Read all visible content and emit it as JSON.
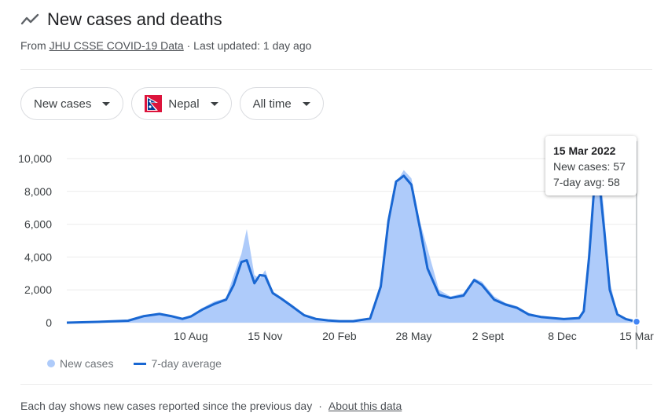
{
  "header": {
    "title": "New cases and deaths",
    "source_prefix": "From",
    "source_link": "JHU CSSE COVID-19 Data",
    "updated": "· Last updated: 1 day ago"
  },
  "filters": {
    "metric": "New cases",
    "country": "Nepal",
    "range": "All time"
  },
  "tooltip": {
    "date": "15 Mar 2022",
    "cases_line": "New cases: 57",
    "avg_line": "7-day avg: 58"
  },
  "legend": {
    "cases": "New cases",
    "avg": "7-day average"
  },
  "footer": {
    "note": "Each day shows new cases reported since the previous day",
    "sep": "·",
    "link": "About this data"
  },
  "colors": {
    "bars": "#aecbfa",
    "line": "#1967d2",
    "grid": "#ebebeb"
  },
  "chart_data": {
    "type": "area",
    "y_ticks": [
      "0",
      "2,000",
      "4,000",
      "6,000",
      "8,000",
      "10,000"
    ],
    "y_tick_values": [
      0,
      2000,
      4000,
      6000,
      8000,
      10000
    ],
    "ylim": [
      0,
      10000
    ],
    "x_ticks": [
      {
        "label": "10 Aug",
        "date": "2020-08-10"
      },
      {
        "label": "15 Nov",
        "date": "2020-11-15"
      },
      {
        "label": "20 Feb",
        "date": "2021-02-20"
      },
      {
        "label": "28 May",
        "date": "2021-05-28"
      },
      {
        "label": "2 Sept",
        "date": "2021-09-02"
      },
      {
        "label": "8 Dec",
        "date": "2021-12-08"
      },
      {
        "label": "15 Mar",
        "date": "2022-03-15"
      }
    ],
    "x_range": [
      "2020-03-01",
      "2022-03-15"
    ],
    "series": [
      {
        "name": "New cases",
        "kind": "bars",
        "points": [
          [
            "2020-03-01",
            0
          ],
          [
            "2020-04-10",
            60
          ],
          [
            "2020-05-20",
            150
          ],
          [
            "2020-06-10",
            450
          ],
          [
            "2020-06-30",
            600
          ],
          [
            "2020-07-15",
            420
          ],
          [
            "2020-07-30",
            250
          ],
          [
            "2020-08-10",
            450
          ],
          [
            "2020-08-25",
            900
          ],
          [
            "2020-09-10",
            1300
          ],
          [
            "2020-09-25",
            1500
          ],
          [
            "2020-10-05",
            2900
          ],
          [
            "2020-10-15",
            4200
          ],
          [
            "2020-10-22",
            5700
          ],
          [
            "2020-11-01",
            2900
          ],
          [
            "2020-11-08",
            2700
          ],
          [
            "2020-11-15",
            3200
          ],
          [
            "2020-11-25",
            1900
          ],
          [
            "2020-12-05",
            1600
          ],
          [
            "2020-12-20",
            1100
          ],
          [
            "2021-01-05",
            500
          ],
          [
            "2021-01-20",
            250
          ],
          [
            "2021-02-05",
            150
          ],
          [
            "2021-02-20",
            100
          ],
          [
            "2021-03-10",
            100
          ],
          [
            "2021-04-01",
            300
          ],
          [
            "2021-04-15",
            2500
          ],
          [
            "2021-04-25",
            6500
          ],
          [
            "2021-05-05",
            8500
          ],
          [
            "2021-05-15",
            9300
          ],
          [
            "2021-05-25",
            8800
          ],
          [
            "2021-06-05",
            6200
          ],
          [
            "2021-06-15",
            4500
          ],
          [
            "2021-06-30",
            2000
          ],
          [
            "2021-07-15",
            1600
          ],
          [
            "2021-08-01",
            1800
          ],
          [
            "2021-08-15",
            2700
          ],
          [
            "2021-08-25",
            2500
          ],
          [
            "2021-09-10",
            1600
          ],
          [
            "2021-09-25",
            1200
          ],
          [
            "2021-10-10",
            1000
          ],
          [
            "2021-10-25",
            600
          ],
          [
            "2021-11-10",
            400
          ],
          [
            "2021-11-25",
            300
          ],
          [
            "2021-12-10",
            250
          ],
          [
            "2021-12-30",
            300
          ],
          [
            "2022-01-05",
            800
          ],
          [
            "2022-01-12",
            4200
          ],
          [
            "2022-01-18",
            8000
          ],
          [
            "2022-01-25",
            10200
          ],
          [
            "2022-02-01",
            6500
          ],
          [
            "2022-02-08",
            2500
          ],
          [
            "2022-02-18",
            600
          ],
          [
            "2022-03-01",
            250
          ],
          [
            "2022-03-15",
            57
          ]
        ]
      },
      {
        "name": "7-day average",
        "kind": "line",
        "points": [
          [
            "2020-03-01",
            0
          ],
          [
            "2020-04-10",
            50
          ],
          [
            "2020-05-20",
            120
          ],
          [
            "2020-06-10",
            400
          ],
          [
            "2020-06-30",
            530
          ],
          [
            "2020-07-15",
            400
          ],
          [
            "2020-07-30",
            230
          ],
          [
            "2020-08-10",
            380
          ],
          [
            "2020-08-25",
            800
          ],
          [
            "2020-09-10",
            1150
          ],
          [
            "2020-09-25",
            1400
          ],
          [
            "2020-10-05",
            2300
          ],
          [
            "2020-10-15",
            3700
          ],
          [
            "2020-10-22",
            3800
          ],
          [
            "2020-11-01",
            2400
          ],
          [
            "2020-11-08",
            2900
          ],
          [
            "2020-11-15",
            2850
          ],
          [
            "2020-11-25",
            1800
          ],
          [
            "2020-12-05",
            1500
          ],
          [
            "2020-12-20",
            1000
          ],
          [
            "2021-01-05",
            450
          ],
          [
            "2021-01-20",
            230
          ],
          [
            "2021-02-05",
            140
          ],
          [
            "2021-02-20",
            90
          ],
          [
            "2021-03-10",
            90
          ],
          [
            "2021-04-01",
            250
          ],
          [
            "2021-04-15",
            2200
          ],
          [
            "2021-04-25",
            6200
          ],
          [
            "2021-05-05",
            8600
          ],
          [
            "2021-05-15",
            8950
          ],
          [
            "2021-05-25",
            8400
          ],
          [
            "2021-06-05",
            5800
          ],
          [
            "2021-06-15",
            3300
          ],
          [
            "2021-06-30",
            1700
          ],
          [
            "2021-07-15",
            1500
          ],
          [
            "2021-08-01",
            1650
          ],
          [
            "2021-08-15",
            2600
          ],
          [
            "2021-08-25",
            2300
          ],
          [
            "2021-09-10",
            1400
          ],
          [
            "2021-09-25",
            1100
          ],
          [
            "2021-10-10",
            900
          ],
          [
            "2021-10-25",
            500
          ],
          [
            "2021-11-10",
            350
          ],
          [
            "2021-11-25",
            280
          ],
          [
            "2021-12-10",
            220
          ],
          [
            "2021-12-30",
            280
          ],
          [
            "2022-01-05",
            700
          ],
          [
            "2022-01-12",
            4000
          ],
          [
            "2022-01-18",
            7800
          ],
          [
            "2022-01-25",
            8700
          ],
          [
            "2022-02-01",
            5500
          ],
          [
            "2022-02-08",
            2000
          ],
          [
            "2022-02-18",
            500
          ],
          [
            "2022-03-01",
            220
          ],
          [
            "2022-03-15",
            58
          ]
        ]
      }
    ],
    "highlight": {
      "date": "2022-03-15",
      "new_cases": 57,
      "avg": 58
    },
    "grid": true,
    "legend_position": "bottom-left"
  }
}
